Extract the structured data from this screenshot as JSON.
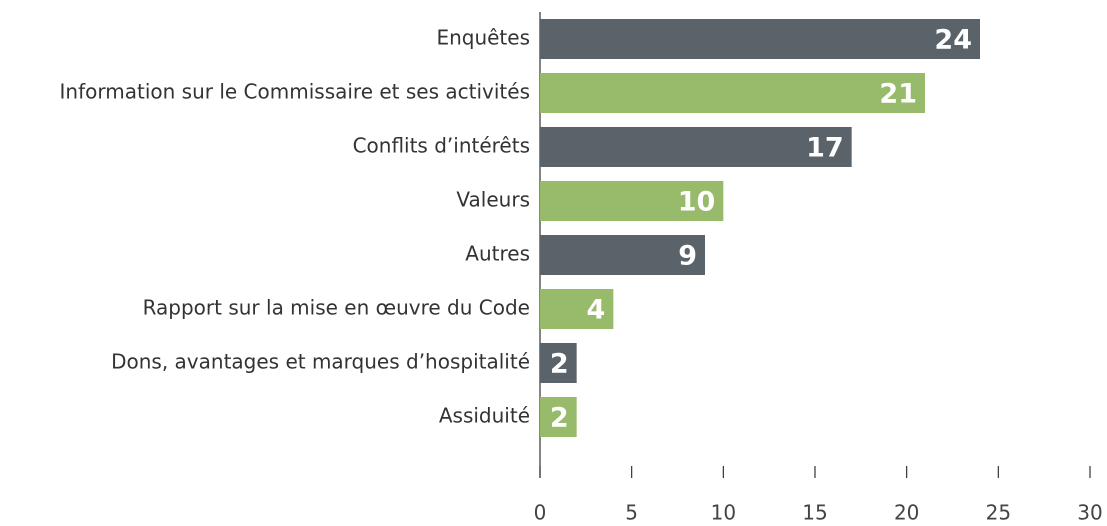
{
  "chart_data": {
    "type": "bar",
    "orientation": "horizontal",
    "categories": [
      "Enquêtes",
      "Information sur le Commissaire et ses activités",
      "Conflits d’intérêts",
      "Valeurs",
      "Autres",
      "Rapport sur la mise en œuvre du Code",
      "Dons, avantages et marques d’hospitalité",
      "Assiduité"
    ],
    "values": [
      24,
      21,
      17,
      10,
      9,
      4,
      2,
      2
    ],
    "colors": [
      "#5b636a",
      "#97bb6a",
      "#5b636a",
      "#97bb6a",
      "#5b636a",
      "#97bb6a",
      "#5b636a",
      "#97bb6a"
    ],
    "xlim": [
      0,
      30
    ],
    "xticks": [
      0,
      5,
      10,
      15,
      20,
      25,
      30
    ],
    "grid": false
  }
}
